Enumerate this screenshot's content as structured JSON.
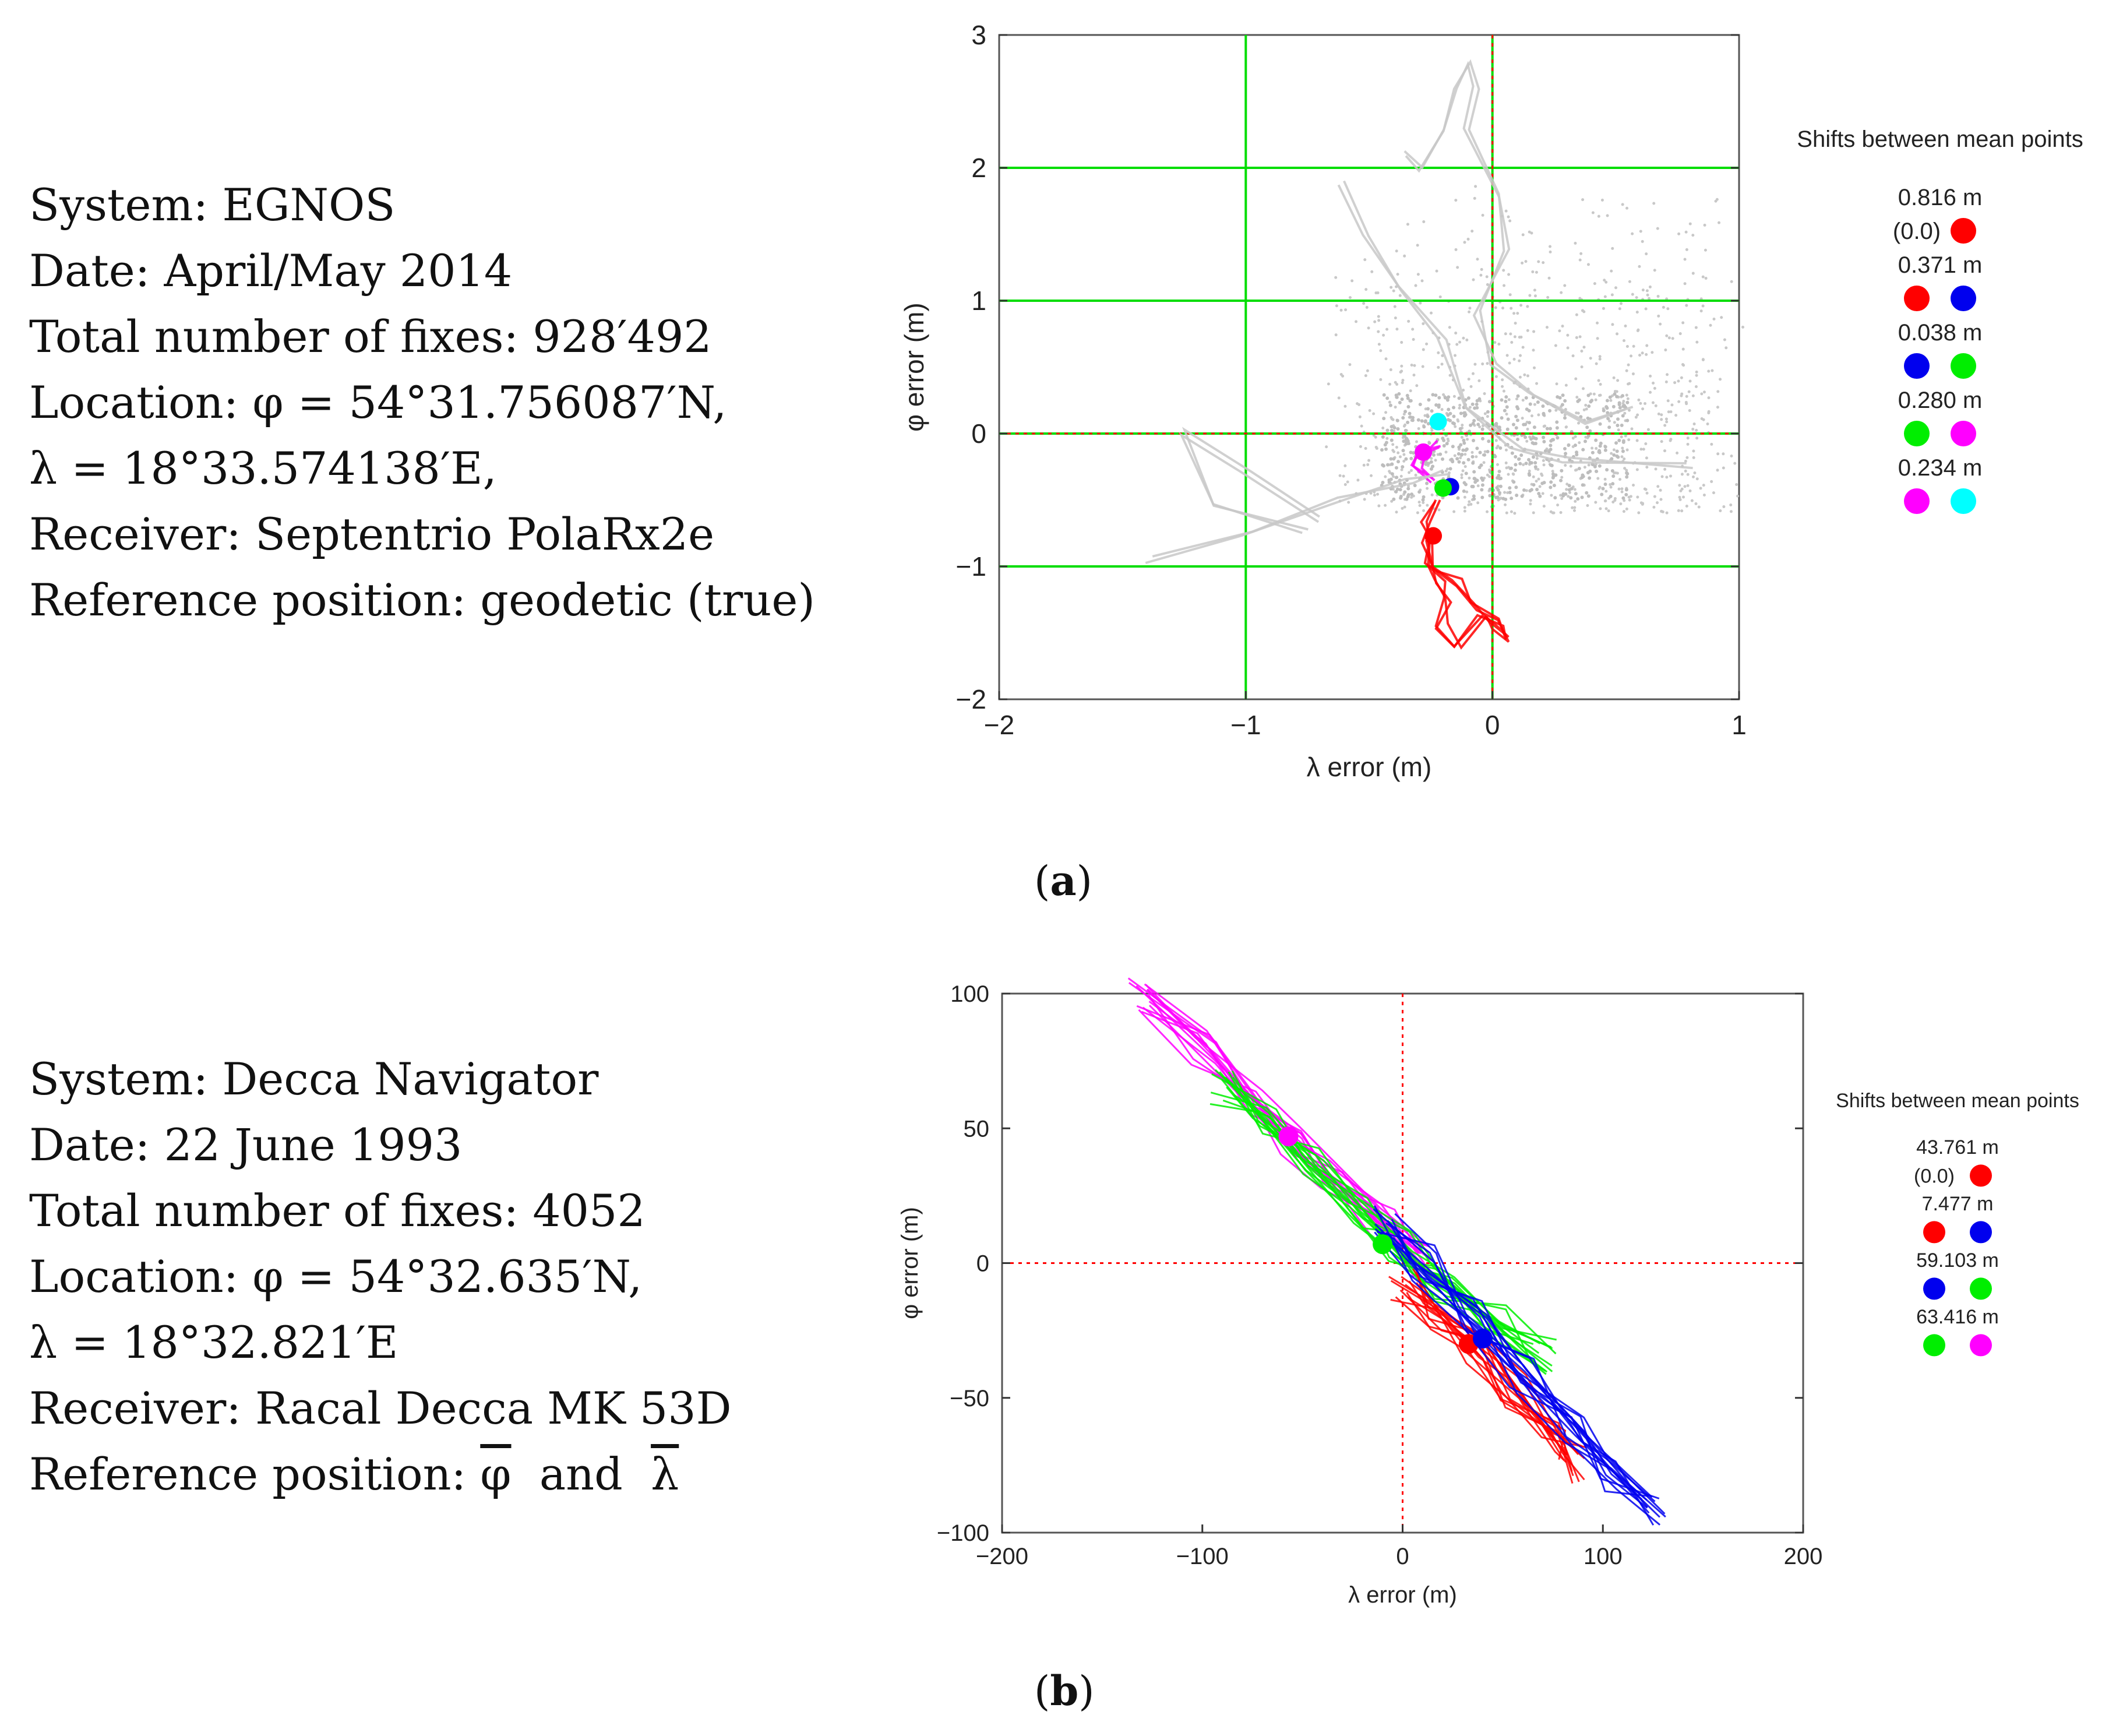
{
  "panel_a": {
    "info": {
      "system": "System: EGNOS",
      "date": "Date: April/May 2014",
      "fixes": "Total number of fixes: 928′492",
      "location1": "Location: φ = 54°31.756087′N,",
      "location2": "λ = 18°33.574138′E,",
      "receiver": "Receiver: Septentrio PolaRx2e",
      "reference": "Reference position: geodetic (true)"
    },
    "caption_letter": "a"
  },
  "panel_b": {
    "info": {
      "system": "System: Decca Navigator",
      "date": "Date: 22 June 1993",
      "fixes": "Total number of fixes: 4052",
      "location1": "Location: φ = 54°32.635′N,",
      "location2": "λ = 18°32.821′E",
      "receiver": "Receiver: Racal Decca MK 53D",
      "reference_prefix": "Reference position: ",
      "ref_phi": "φ",
      "ref_and": "and",
      "ref_lambda": "λ"
    },
    "caption_letter": "b"
  },
  "colors": {
    "red": "#ff0000",
    "blue": "#0000ee",
    "green": "#00ee00",
    "magenta": "#ff00ff",
    "cyan": "#00ffff",
    "grid_green": "#00dd00",
    "track_gray": "#c8c8c8"
  },
  "chart_data": [
    {
      "type": "scatter",
      "title": "",
      "xlabel": "λ error (m)",
      "ylabel": "φ error (m)",
      "xlim": [
        -2,
        1
      ],
      "ylim": [
        -2,
        3
      ],
      "xticks": [
        -2,
        -1,
        0,
        1
      ],
      "yticks": [
        -2,
        -1,
        0,
        1,
        2,
        3
      ],
      "tick_labels_x": [
        "−2",
        "−1",
        "0",
        "1"
      ],
      "tick_labels_y": [
        "−2",
        "−1",
        "0",
        "1",
        "2",
        "3"
      ],
      "grid": true,
      "legend_title": "Shifts between mean points",
      "legend": [
        {
          "label": "0.816 m",
          "sub": "(0.0)",
          "colors": [
            "red"
          ]
        },
        {
          "label": "0.371 m",
          "colors": [
            "red",
            "blue"
          ]
        },
        {
          "label": "0.038 m",
          "colors": [
            "blue",
            "green"
          ]
        },
        {
          "label": "0.280 m",
          "colors": [
            "green",
            "magenta"
          ]
        },
        {
          "label": "0.234 m",
          "colors": [
            "magenta",
            "cyan"
          ]
        }
      ],
      "mean_points": [
        {
          "name": "red",
          "x": -0.24,
          "y": -0.77
        },
        {
          "name": "blue",
          "x": -0.17,
          "y": -0.4
        },
        {
          "name": "green",
          "x": -0.2,
          "y": -0.41
        },
        {
          "name": "magenta",
          "x": -0.28,
          "y": -0.14
        },
        {
          "name": "cyan",
          "x": -0.22,
          "y": 0.09
        }
      ],
      "series": [
        {
          "name": "red-track",
          "color": "red",
          "points": [
            [
              -0.22,
              -0.52
            ],
            [
              -0.26,
              -0.65
            ],
            [
              -0.28,
              -0.8
            ],
            [
              -0.26,
              -1.0
            ],
            [
              -0.22,
              -1.1
            ],
            [
              -0.18,
              -1.25
            ],
            [
              -0.2,
              -1.45
            ],
            [
              -0.14,
              -1.6
            ],
            [
              -0.05,
              -1.38
            ],
            [
              0.02,
              -1.45
            ],
            [
              0.06,
              -1.55
            ],
            [
              0.0,
              -1.42
            ],
            [
              -0.08,
              -1.3
            ],
            [
              -0.14,
              -1.12
            ],
            [
              -0.24,
              -1.0
            ],
            [
              -0.27,
              -0.8
            ]
          ]
        },
        {
          "name": "magenta-track",
          "color": "magenta",
          "points": [
            [
              -0.25,
              -0.35
            ],
            [
              -0.3,
              -0.25
            ],
            [
              -0.28,
              -0.15
            ],
            [
              -0.22,
              -0.08
            ]
          ]
        },
        {
          "name": "gray-track-1",
          "color": "gray",
          "points": [
            [
              -1.4,
              -0.95
            ],
            [
              -1.0,
              -0.75
            ],
            [
              -0.6,
              -0.5
            ],
            [
              -0.35,
              -0.35
            ],
            [
              -0.2,
              -0.3
            ]
          ]
        },
        {
          "name": "gray-track-2",
          "color": "gray",
          "points": [
            [
              -0.7,
              -0.65
            ],
            [
              -1.0,
              -0.3
            ],
            [
              -1.25,
              0.0
            ],
            [
              -1.15,
              -0.55
            ],
            [
              -0.75,
              -0.75
            ]
          ]
        },
        {
          "name": "gray-track-3",
          "color": "gray",
          "points": [
            [
              -0.6,
              1.9
            ],
            [
              -0.5,
              1.5
            ],
            [
              -0.35,
              1.1
            ],
            [
              -0.2,
              0.7
            ],
            [
              -0.1,
              0.2
            ],
            [
              0.1,
              -0.1
            ],
            [
              0.3,
              -0.2
            ],
            [
              0.8,
              -0.25
            ]
          ]
        },
        {
          "name": "gray-track-4",
          "color": "gray",
          "points": [
            [
              -0.35,
              2.1
            ],
            [
              -0.3,
              2.0
            ],
            [
              -0.2,
              2.3
            ],
            [
              -0.15,
              2.6
            ],
            [
              -0.1,
              2.8
            ],
            [
              -0.05,
              2.6
            ],
            [
              -0.1,
              2.3
            ],
            [
              0.0,
              1.8
            ],
            [
              0.05,
              1.4
            ],
            [
              -0.05,
              0.9
            ],
            [
              0.0,
              0.5
            ],
            [
              0.15,
              0.3
            ],
            [
              0.35,
              0.1
            ],
            [
              0.55,
              0.2
            ]
          ]
        }
      ]
    },
    {
      "type": "scatter",
      "title": "",
      "xlabel": "λ error (m)",
      "ylabel": "φ error (m)",
      "xlim": [
        -200,
        200
      ],
      "ylim": [
        -100,
        100
      ],
      "xticks": [
        -200,
        -100,
        0,
        100,
        200
      ],
      "yticks": [
        -100,
        -50,
        0,
        50,
        100
      ],
      "tick_labels_x": [
        "−200",
        "−100",
        "0",
        "100",
        "200"
      ],
      "tick_labels_y": [
        "−100",
        "−50",
        "0",
        "50",
        "100"
      ],
      "grid": false,
      "legend_title": "Shifts between mean points",
      "legend": [
        {
          "label": "43.761 m",
          "sub": "(0.0)",
          "colors": [
            "red"
          ]
        },
        {
          "label": "7.477 m",
          "colors": [
            "red",
            "blue"
          ]
        },
        {
          "label": "59.103 m",
          "colors": [
            "blue",
            "green"
          ]
        },
        {
          "label": "63.416 m",
          "colors": [
            "green",
            "magenta"
          ]
        }
      ],
      "mean_points": [
        {
          "name": "red",
          "x": 33,
          "y": -30
        },
        {
          "name": "blue",
          "x": 40,
          "y": -28
        },
        {
          "name": "green",
          "x": -10,
          "y": 7
        },
        {
          "name": "magenta",
          "x": -57,
          "y": 47
        }
      ],
      "series": [
        {
          "name": "magenta-band",
          "color": "magenta",
          "points": [
            [
              -130,
              100
            ],
            [
              -100,
              80
            ],
            [
              -75,
              60
            ],
            [
              -55,
              45
            ],
            [
              -35,
              32
            ],
            [
              -10,
              15
            ],
            [
              10,
              0
            ]
          ]
        },
        {
          "name": "green-band",
          "color": "green",
          "points": [
            [
              -90,
              65
            ],
            [
              -70,
              52
            ],
            [
              -45,
              36
            ],
            [
              -20,
              18
            ],
            [
              0,
              5
            ],
            [
              20,
              -8
            ],
            [
              45,
              -22
            ],
            [
              70,
              -35
            ]
          ]
        },
        {
          "name": "red-band",
          "color": "red",
          "points": [
            [
              0,
              -8
            ],
            [
              15,
              -18
            ],
            [
              35,
              -32
            ],
            [
              55,
              -48
            ],
            [
              75,
              -65
            ],
            [
              85,
              -75
            ]
          ]
        },
        {
          "name": "blue-band",
          "color": "blue",
          "points": [
            [
              -10,
              15
            ],
            [
              10,
              0
            ],
            [
              35,
              -20
            ],
            [
              60,
              -42
            ],
            [
              85,
              -62
            ],
            [
              105,
              -78
            ],
            [
              125,
              -93
            ]
          ]
        }
      ]
    }
  ]
}
